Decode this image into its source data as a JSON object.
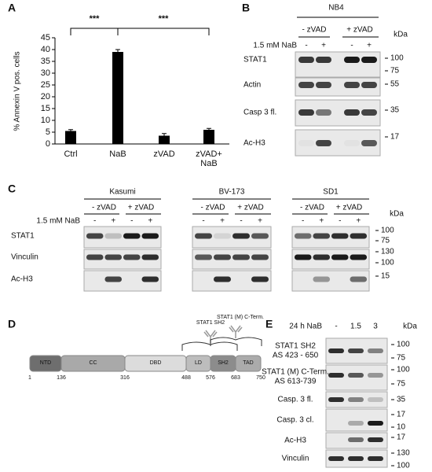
{
  "panel_labels": [
    "A",
    "B",
    "C",
    "D",
    "E"
  ],
  "chart_data": {
    "type": "bar",
    "categories": [
      "Ctrl",
      "NaB",
      "zVAD",
      "zVAD+ NaB"
    ],
    "values": [
      5.5,
      39,
      3.5,
      6
    ],
    "errors": [
      0.6,
      1,
      0.9,
      0.6
    ],
    "color": "#000000",
    "y_label": "% Annexin V pos. cells",
    "ylim": [
      0,
      45
    ],
    "yticks": [
      0,
      5,
      10,
      15,
      20,
      25,
      30,
      35,
      40,
      45
    ],
    "annotations": [
      "***",
      "***"
    ]
  },
  "panel_b": {
    "cell_line": "NB4",
    "groups": [
      "- zVAD",
      "+ zVAD"
    ],
    "treatment": "1.5 mM NaB",
    "lanes": [
      "-",
      "+",
      "-",
      "+"
    ],
    "unit": "kDa",
    "rows": [
      {
        "label": "STAT1",
        "markers": [
          100,
          75
        ]
      },
      {
        "label": "Actin",
        "markers": [
          55
        ]
      },
      {
        "label": "Casp 3 fl.",
        "markers": [
          35
        ]
      },
      {
        "label": "Ac-H3",
        "markers": [
          17
        ]
      }
    ]
  },
  "panel_c": {
    "treatment": "1.5 mM NaB",
    "unit": "kDa",
    "cell_lines": [
      {
        "name": "Kasumi",
        "groups": [
          "- zVAD",
          "+ zVAD"
        ],
        "lanes": [
          "-",
          "+",
          "-",
          "+"
        ]
      },
      {
        "name": "BV-173",
        "groups": [
          "- zVAD",
          "+ zVAD"
        ],
        "lanes": [
          "-",
          "+",
          "-",
          "+"
        ]
      },
      {
        "name": "SD1",
        "groups": [
          "- zVAD",
          "+ zVAD"
        ],
        "lanes": [
          "-",
          "+",
          "-",
          "+"
        ]
      }
    ],
    "rows": [
      {
        "label": "STAT1",
        "markers": [
          100,
          75
        ]
      },
      {
        "label": "Vinculin",
        "markers": [
          130,
          100
        ]
      },
      {
        "label": "Ac-H3",
        "markers": [
          15
        ]
      }
    ]
  },
  "panel_d": {
    "domains": [
      "NTD",
      "CC",
      "DBD",
      "LD",
      "SH2",
      "TAD"
    ],
    "positions": [
      1,
      136,
      316,
      488,
      576,
      683,
      750
    ],
    "antibodies": [
      "STAT1 SH2",
      "STAT1 (M) C-Term."
    ]
  },
  "panel_e": {
    "treatment": "24 h NaB",
    "lanes": [
      "-",
      "1.5",
      "3"
    ],
    "unit": "kDa",
    "rows": [
      {
        "label": [
          "STAT1 SH2",
          "AS 423 - 650"
        ],
        "markers": [
          100,
          75
        ]
      },
      {
        "label": [
          "STAT1 (M) C-Term.",
          "AS 613-739"
        ],
        "markers": [
          100,
          75
        ]
      },
      {
        "label": [
          "Casp. 3 fl."
        ],
        "markers": [
          35
        ]
      },
      {
        "label": [
          "Casp. 3 cl."
        ],
        "markers": [
          17,
          10
        ]
      },
      {
        "label": [
          "Ac-H3"
        ],
        "markers": [
          17
        ]
      },
      {
        "label": [
          "Vinculin"
        ],
        "markers": [
          130,
          100
        ]
      }
    ]
  }
}
